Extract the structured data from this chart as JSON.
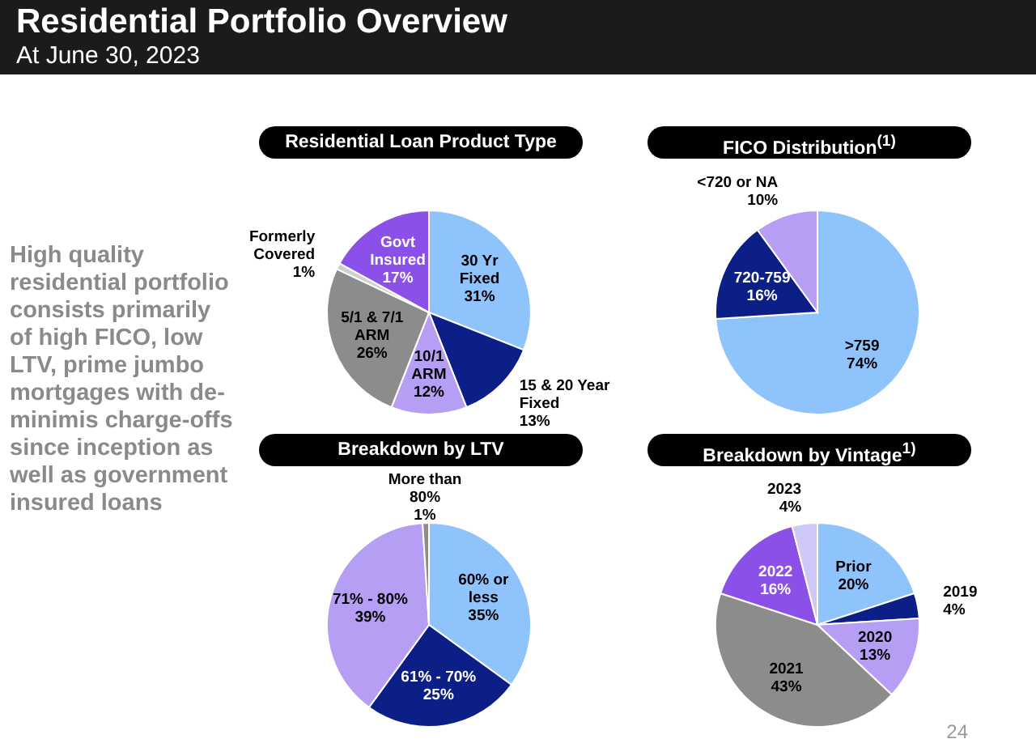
{
  "chart_data": [
    {
      "type": "other",
      "title": "Residential Portfolio Overview",
      "subtitle": "At June 30, 2023",
      "annotations": [
        "High quality residential portfolio consists primarily of high FICO, low LTV, prime jumbo mortgages with de-minimis charge-offs since inception as well as government insured loans",
        "24"
      ]
    },
    {
      "type": "pie",
      "title": "Residential Loan Product Type",
      "categories": [
        "30 Yr Fixed",
        "15 & 20 Year Fixed",
        "10/1 ARM",
        "5/1 & 7/1 ARM",
        "Formerly Covered",
        "Govt Insured"
      ],
      "values": [
        31,
        13,
        12,
        26,
        1,
        17
      ],
      "value_labels": [
        "31%",
        "13%",
        "12%",
        "26%",
        "1%",
        "17%"
      ],
      "colors": [
        "#8fc3fb",
        "#0c1f86",
        "#b79ef5",
        "#8c8c8c",
        "#cfcfcf",
        "#8b50e8"
      ],
      "legend": false
    },
    {
      "type": "pie",
      "title": "FICO Distribution$^{(1)}$",
      "categories": [
        ">759",
        "720-759",
        "<720 or NA"
      ],
      "values": [
        74,
        16,
        10
      ],
      "value_labels": [
        "74%",
        "16%",
        "10%"
      ],
      "colors": [
        "#8fc3fb",
        "#0c1f86",
        "#b79ef5"
      ],
      "legend": false
    },
    {
      "type": "pie",
      "title": "Breakdown by LTV",
      "categories": [
        "60% or less",
        "61% - 70%",
        "71% - 80%",
        "More than 80%"
      ],
      "values": [
        35,
        25,
        39,
        1
      ],
      "value_labels": [
        "35%",
        "25%",
        "39%",
        "1%"
      ],
      "colors": [
        "#8fc3fb",
        "#0c1f86",
        "#b79ef5",
        "#8c8c8c"
      ],
      "legend": false
    },
    {
      "type": "pie",
      "title": "Breakdown by Vintage$^{1)}$",
      "categories": [
        "Prior",
        "2019",
        "2020",
        "2021",
        "2022",
        "2023"
      ],
      "values": [
        20,
        4,
        13,
        43,
        16,
        4
      ],
      "value_labels": [
        "20%",
        "4%",
        "13%",
        "43%",
        "16%",
        "4%"
      ],
      "colors": [
        "#8fc3fb",
        "#0c1f86",
        "#b79ef5",
        "#8c8c8c",
        "#8b50e8",
        "#cdc8f7"
      ],
      "legend": false
    }
  ]
}
